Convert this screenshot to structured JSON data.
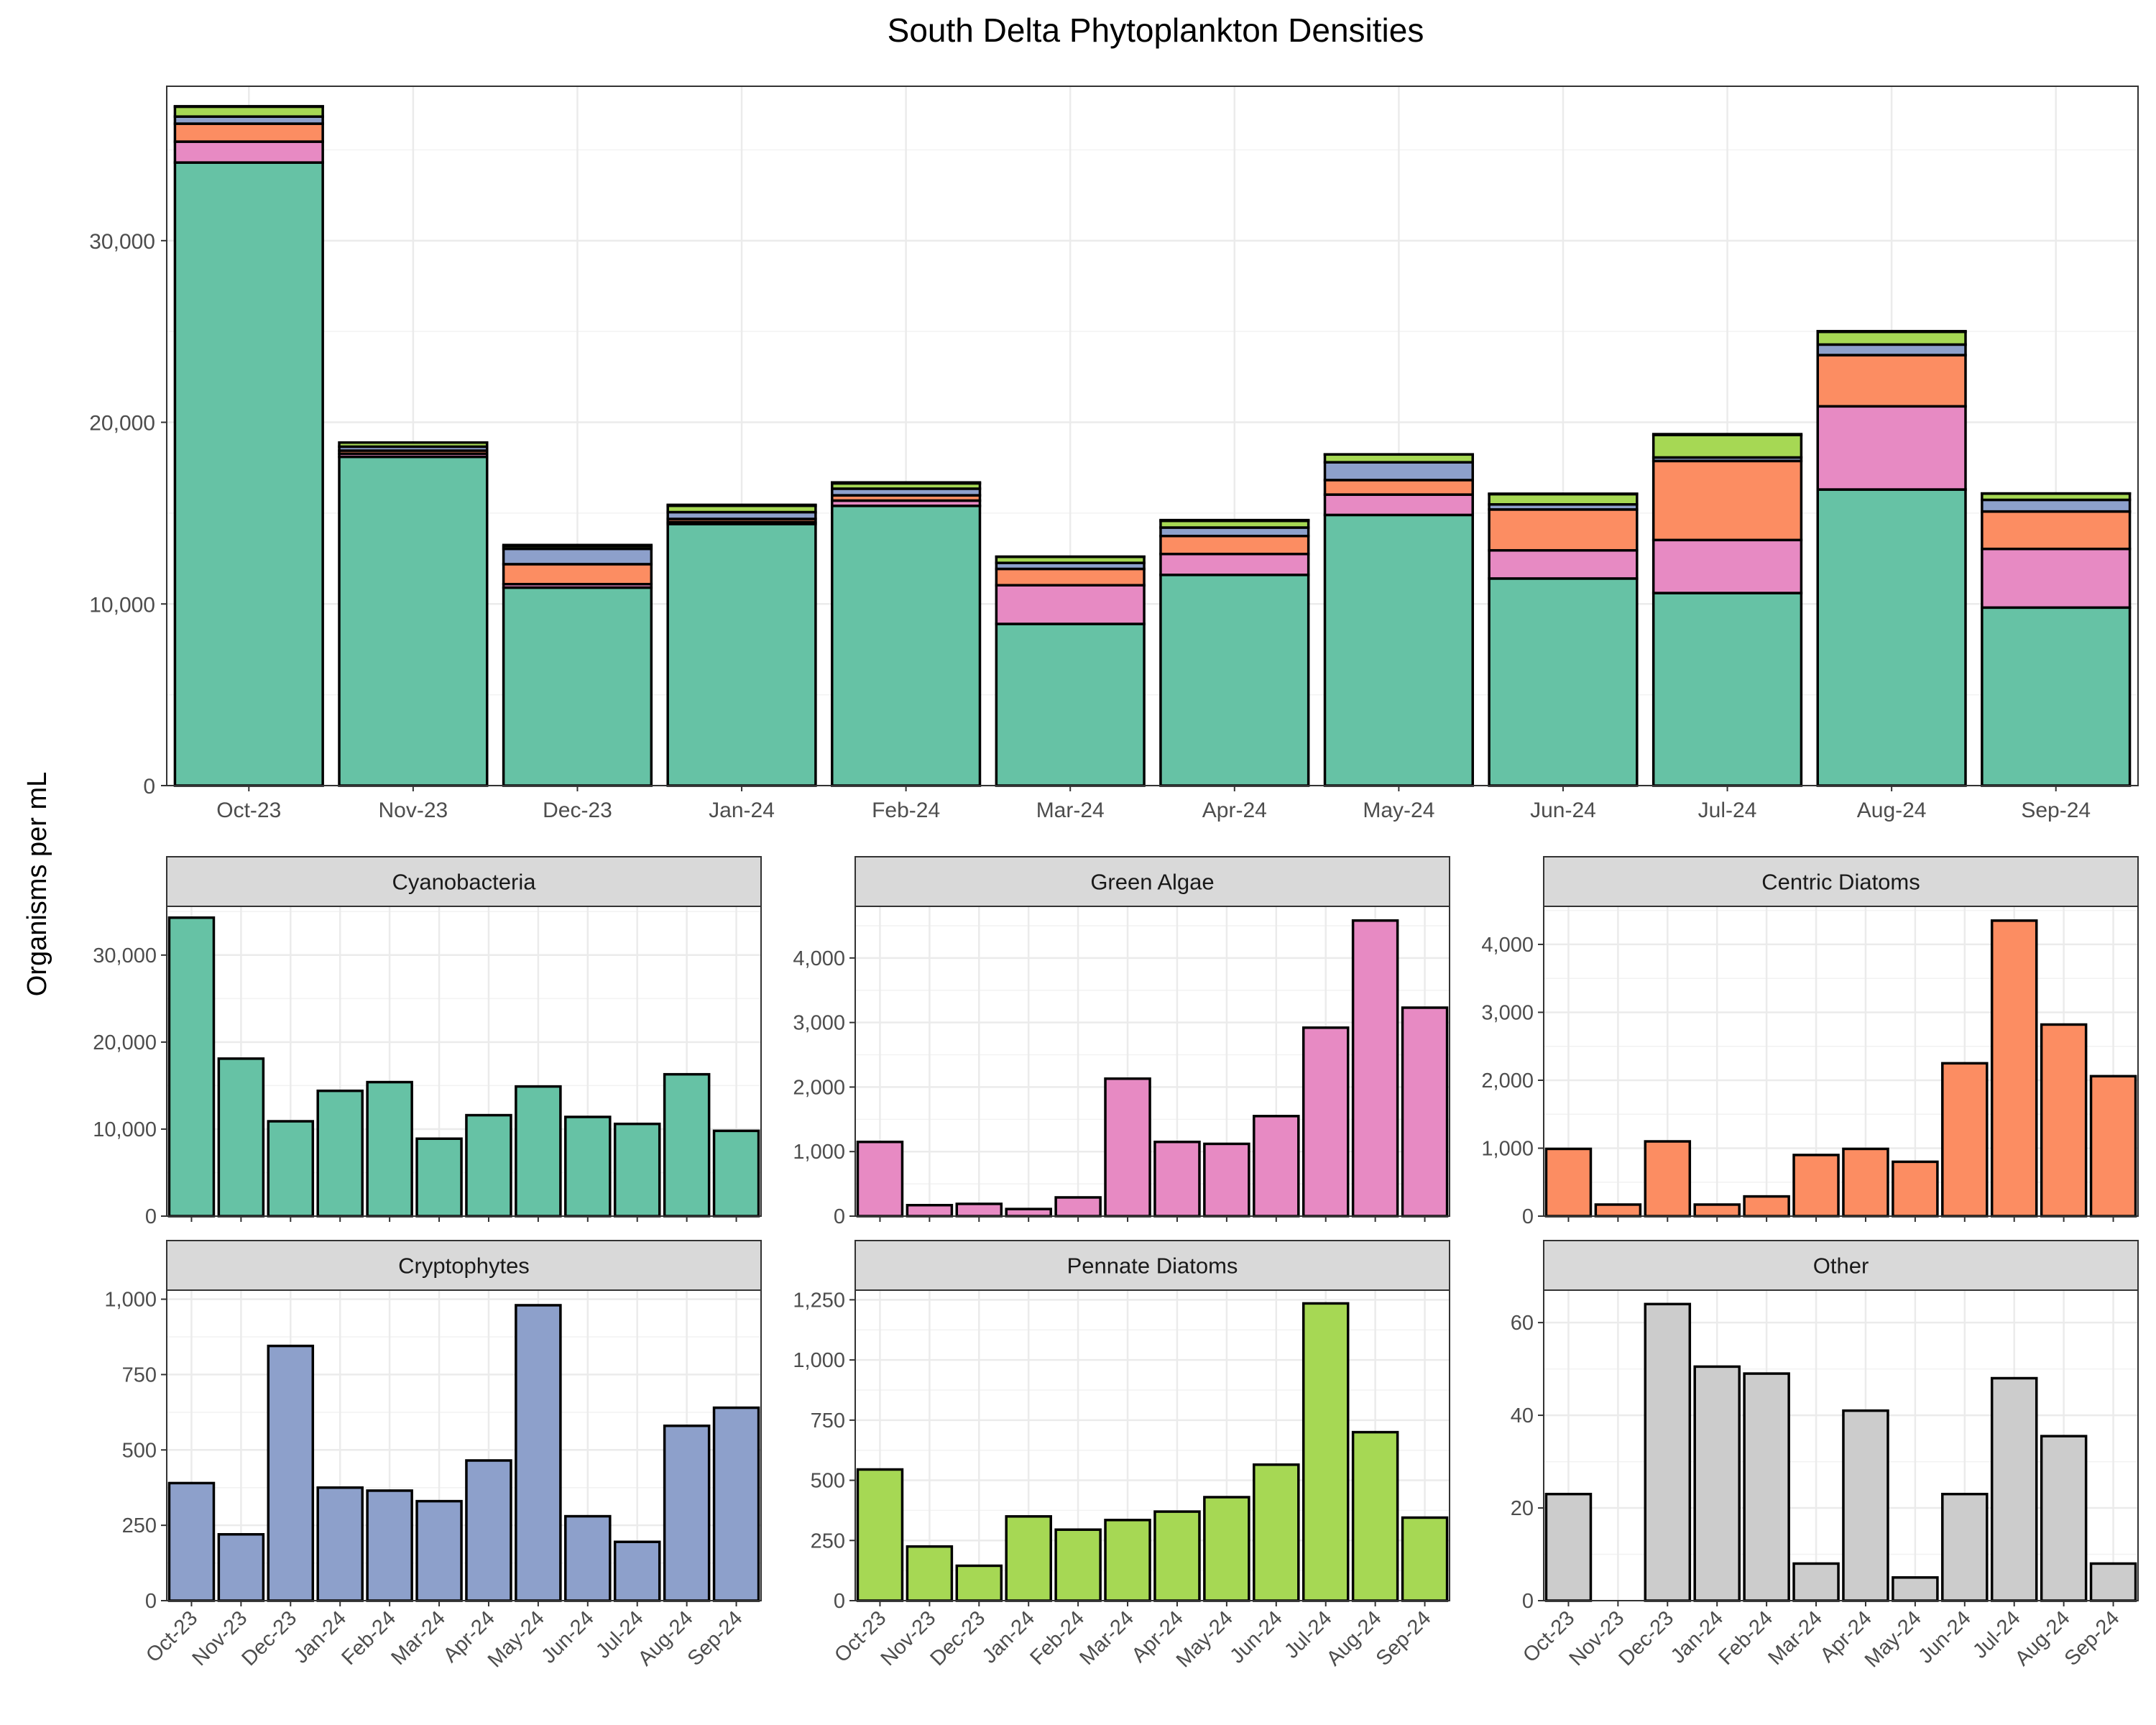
{
  "chart_data": {
    "title": "South Delta Phytoplankton Densities",
    "ylabel": "Organisms per mL",
    "months": [
      "Oct-23",
      "Nov-23",
      "Dec-23",
      "Jan-24",
      "Feb-24",
      "Mar-24",
      "Apr-24",
      "May-24",
      "Jun-24",
      "Jul-24",
      "Aug-24",
      "Sep-24"
    ],
    "colors": {
      "Cyanobacteria": "#66c2a5",
      "Green Algae": "#e78ac3",
      "Centric Diatoms": "#fc8d62",
      "Cryptophytes": "#8da0cb",
      "Pennate Diatoms": "#a6d854",
      "Other": "#cccccc"
    },
    "main": {
      "type": "bar",
      "stacked": true,
      "ylim": [
        0,
        38500
      ],
      "yticks": [
        0,
        10000,
        20000,
        30000
      ],
      "ytick_labels": [
        "0",
        "10,000",
        "20,000",
        "30,000"
      ],
      "stack_order": [
        "Cyanobacteria",
        "Green Algae",
        "Centric Diatoms",
        "Cryptophytes",
        "Pennate Diatoms",
        "Other"
      ],
      "grid": true,
      "legend": "none"
    },
    "panels": [
      {
        "name": "Cyanobacteria",
        "type": "bar",
        "values": [
          34300,
          18100,
          10900,
          14400,
          15400,
          8900,
          11600,
          14900,
          11400,
          10600,
          16300,
          9800
        ],
        "ylim": [
          0,
          35600
        ],
        "yticks": [
          0,
          10000,
          20000,
          30000
        ],
        "ytick_labels": [
          "0",
          "10,000",
          "20,000",
          "30,000"
        ]
      },
      {
        "name": "Green Algae",
        "type": "bar",
        "values": [
          1150,
          170,
          190,
          110,
          290,
          2130,
          1150,
          1120,
          1550,
          2920,
          4580,
          3230
        ],
        "ylim": [
          0,
          4800
        ],
        "yticks": [
          0,
          1000,
          2000,
          3000,
          4000
        ],
        "ytick_labels": [
          "0",
          "1,000",
          "2,000",
          "3,000",
          "4,000"
        ]
      },
      {
        "name": "Centric Diatoms",
        "type": "bar",
        "values": [
          990,
          170,
          1100,
          170,
          290,
          900,
          990,
          800,
          2250,
          4350,
          2820,
          2060
        ],
        "ylim": [
          0,
          4560
        ],
        "yticks": [
          0,
          1000,
          2000,
          3000,
          4000
        ],
        "ytick_labels": [
          "0",
          "1,000",
          "2,000",
          "3,000",
          "4,000"
        ]
      },
      {
        "name": "Cryptophytes",
        "type": "bar",
        "values": [
          390,
          220,
          845,
          375,
          365,
          330,
          465,
          980,
          280,
          195,
          580,
          640
        ],
        "ylim": [
          0,
          1030
        ],
        "yticks": [
          0,
          250,
          500,
          750,
          1000
        ],
        "ytick_labels": [
          "0",
          "250",
          "500",
          "750",
          "1,000"
        ]
      },
      {
        "name": "Pennate Diatoms",
        "type": "bar",
        "values": [
          545,
          225,
          145,
          350,
          295,
          335,
          370,
          430,
          565,
          1235,
          700,
          345
        ],
        "ylim": [
          0,
          1290
        ],
        "yticks": [
          0,
          250,
          500,
          750,
          1000,
          1250
        ],
        "ytick_labels": [
          "0",
          "250",
          "500",
          "750",
          "1,000",
          "1,250"
        ]
      },
      {
        "name": "Other",
        "type": "bar",
        "values": [
          23,
          0,
          64,
          50.5,
          49,
          8,
          41,
          5,
          23,
          48,
          35.5,
          8
        ],
        "ylim": [
          0,
          67
        ],
        "yticks": [
          0,
          20,
          40,
          60
        ],
        "ytick_labels": [
          "0",
          "20",
          "40",
          "60"
        ]
      }
    ]
  }
}
